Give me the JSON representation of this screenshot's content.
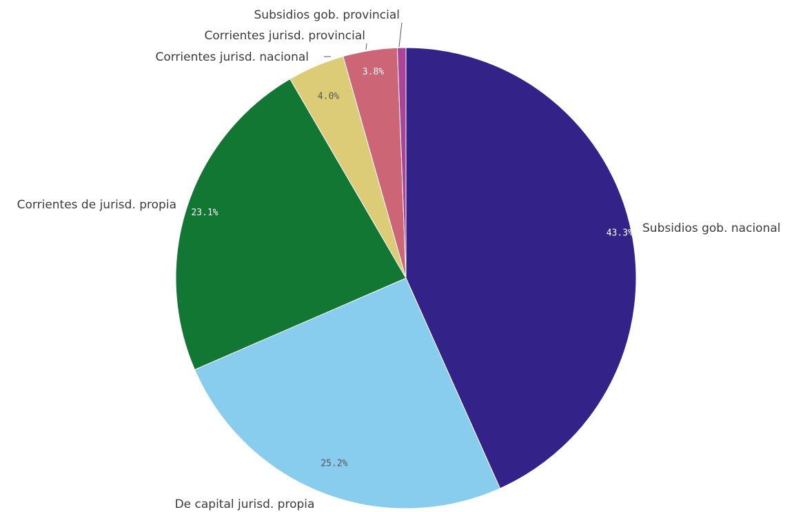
{
  "chart_data": {
    "type": "pie",
    "title": "",
    "categories": [
      "Subsidios gob. nacional",
      "De capital jurisd. propia",
      "Corrientes de jurisd. propia",
      "Corrientes jurisd. nacional",
      "Corrientes jurisd. provincial",
      "Subsidios gob. provincial"
    ],
    "values": [
      43.3,
      25.2,
      23.1,
      4.0,
      3.8,
      0.6
    ],
    "value_labels": [
      "43.3%",
      "25.2%",
      "23.1%",
      "4.0%",
      "3.8%",
      ""
    ],
    "colors": [
      "#332288",
      "#88CCEE",
      "#117733",
      "#DDCC77",
      "#CC6677",
      "#AA4499"
    ],
    "label_colors": [
      "#ffffff",
      "#555555",
      "#ffffff",
      "#555555",
      "#ffffff",
      "#ffffff"
    ],
    "start_angle": "top",
    "direction": "clockwise",
    "legend": "none"
  }
}
